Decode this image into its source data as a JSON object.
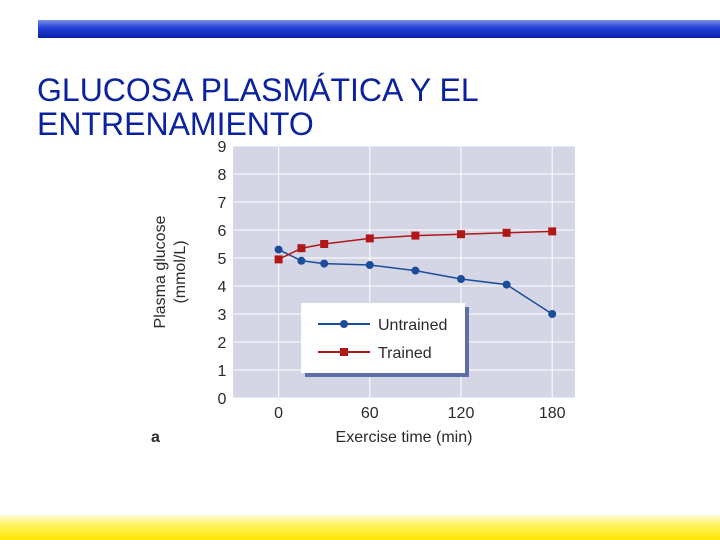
{
  "slide": {
    "title_line1": "GLUCOSA PLASMÁTICA Y EL",
    "title_line2": "ENTRENAMIENTO",
    "accent_top": "#1f3ed6",
    "accent_bottom": "#ffe600"
  },
  "chart_data": {
    "type": "line",
    "panel_label": "a",
    "xlabel": "Exercise time (min)",
    "ylabel_line1": "Plasma glucose",
    "ylabel_line2": "(mmol/L)",
    "xlim": [
      -30,
      195
    ],
    "ylim": [
      0,
      9
    ],
    "x_ticks": [
      0,
      60,
      120,
      180
    ],
    "y_ticks": [
      0,
      1,
      2,
      3,
      4,
      5,
      6,
      7,
      8,
      9
    ],
    "grid": true,
    "legend_position": "center",
    "plot_bg": "#d4d6e6",
    "series": [
      {
        "name": "Untrained",
        "color": "#1a4c9a",
        "marker": "circle",
        "x": [
          0,
          15,
          30,
          60,
          90,
          120,
          150,
          180
        ],
        "y": [
          5.3,
          4.9,
          4.8,
          4.75,
          4.55,
          4.25,
          4.05,
          3.0
        ]
      },
      {
        "name": "Trained",
        "color": "#b01818",
        "marker": "square",
        "x": [
          0,
          15,
          30,
          60,
          90,
          120,
          150,
          180
        ],
        "y": [
          4.95,
          5.35,
          5.5,
          5.7,
          5.8,
          5.85,
          5.9,
          5.95
        ]
      }
    ]
  }
}
